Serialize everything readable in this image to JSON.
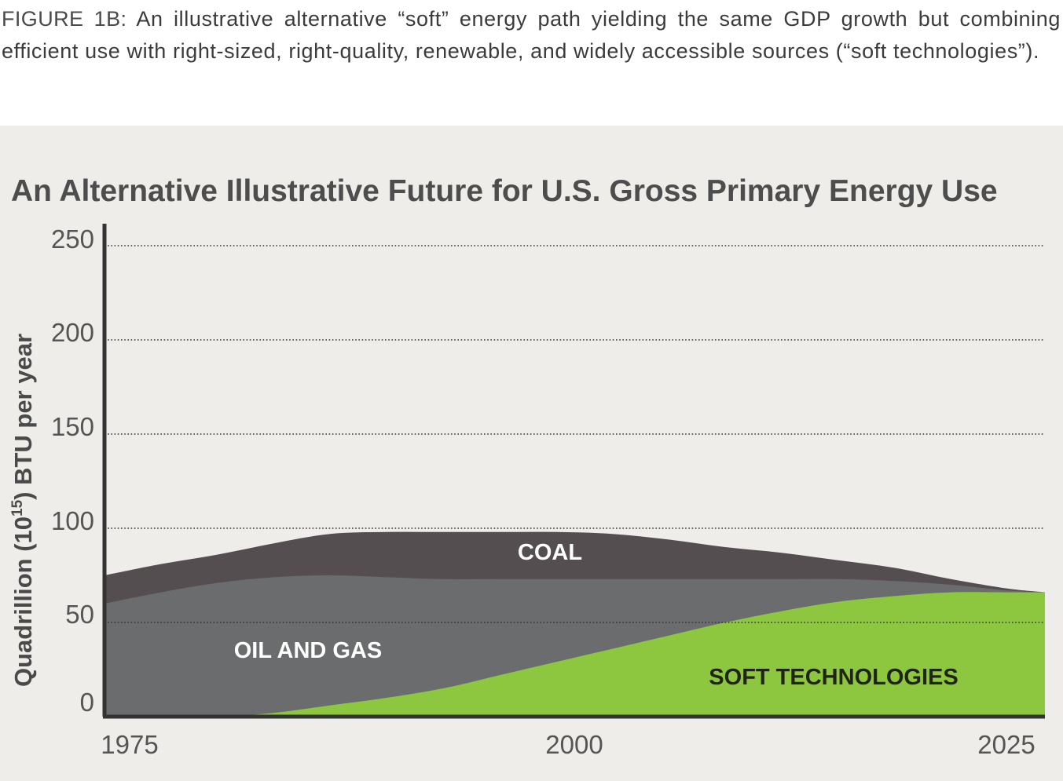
{
  "caption": {
    "label": "FIGURE 1B:",
    "text": " An illustrative alternative “soft” energy path yielding the same GDP growth but combining efficient use with right-sized, right-quality, renewable, and widely accessible sources (“soft technologies”)."
  },
  "colors": {
    "panel_background": "#eeede9",
    "coal": "#554e51",
    "oil_and_gas": "#6a6c6d",
    "soft_technologies": "#8dc63f",
    "axis": "#333333",
    "gridline": "#333333"
  },
  "chart_data": {
    "type": "area",
    "stacked": true,
    "title": "An Alternative Illustrative Future for U.S. Gross Primary Energy Use",
    "xlabel": "",
    "ylabel_parts": {
      "before": "Quadrillion (10",
      "superscript": "15",
      "after": ") BTU per year"
    },
    "xlim": [
      1975,
      2025
    ],
    "ylim": [
      0,
      250
    ],
    "x_ticks": [
      "1975",
      "2000",
      "2025"
    ],
    "y_ticks": [
      "0",
      "50",
      "100",
      "150",
      "200",
      "250"
    ],
    "grid": "dotted horizontal",
    "x": [
      1975,
      1978,
      1981,
      1984,
      1987,
      1990,
      1993,
      1996,
      1999,
      2002,
      2005,
      2008,
      2011,
      2014,
      2017,
      2020,
      2023,
      2025
    ],
    "series": [
      {
        "name": "SOFT TECHNOLOGIES",
        "color": "#8dc63f",
        "values": [
          0,
          0,
          0,
          2,
          6,
          10,
          15,
          22,
          29,
          36,
          43,
          50,
          56,
          61,
          64,
          66,
          66,
          66
        ]
      },
      {
        "name": "OIL AND GAS",
        "color": "#6a6c6d",
        "values": [
          60,
          66,
          71,
          72,
          69,
          64,
          58,
          51,
          44,
          37,
          30,
          23,
          17,
          12,
          8,
          4,
          1,
          0
        ]
      },
      {
        "name": "COAL",
        "color": "#554e51",
        "values": [
          15,
          15,
          15,
          18,
          22,
          24,
          25,
          25,
          25,
          24,
          21,
          17,
          14,
          10,
          7,
          3,
          1,
          0
        ]
      }
    ]
  }
}
